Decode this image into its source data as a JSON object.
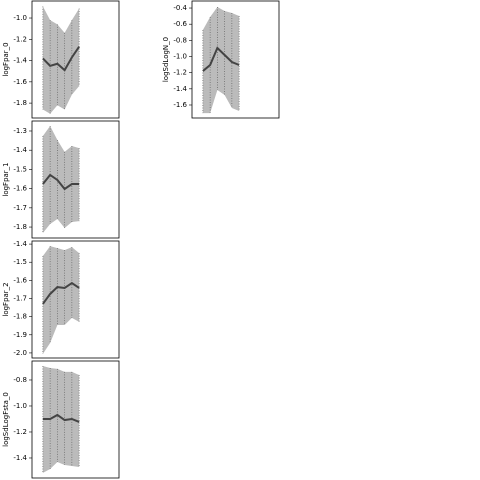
{
  "chart_data": [
    {
      "type": "line",
      "ylabel": "logFpar_0",
      "x": [
        0,
        1,
        2,
        3,
        4,
        5
      ],
      "xlim": [
        -1.5,
        10.5
      ],
      "values": [
        -1.38,
        -1.45,
        -1.43,
        -1.49,
        -1.37,
        -1.27
      ],
      "upper": [
        -0.89,
        -1.02,
        -1.06,
        -1.14,
        -1.02,
        -0.91
      ],
      "lower": [
        -1.86,
        -1.9,
        -1.82,
        -1.86,
        -1.72,
        -1.64
      ],
      "ylim": [
        -1.94,
        -0.84
      ],
      "yticks": [
        {
          "value": -1,
          "label": "-1.0"
        },
        -1.2,
        -1.4,
        -1.6,
        -1.8
      ],
      "color": "#444444",
      "band_color": "#bbbbbb"
    },
    {
      "type": "line",
      "ylabel": "logFpar_1",
      "x": [
        0,
        1,
        2,
        3,
        4,
        5
      ],
      "xlim": [
        -1.5,
        10.5
      ],
      "values": [
        -1.576,
        -1.529,
        -1.555,
        -1.602,
        -1.576,
        -1.576
      ],
      "upper": [
        -1.326,
        -1.274,
        -1.347,
        -1.409,
        -1.378,
        -1.389
      ],
      "lower": [
        -1.831,
        -1.784,
        -1.758,
        -1.805,
        -1.774,
        -1.769
      ],
      "ylim": [
        -1.857,
        -1.248
      ],
      "yticks": [
        -1.3,
        -1.4,
        -1.5,
        -1.6,
        -1.7,
        -1.8
      ],
      "color": "#444444",
      "band_color": "#bbbbbb"
    },
    {
      "type": "line",
      "ylabel": "logFpar_2",
      "x": [
        0,
        1,
        2,
        3,
        4,
        5
      ],
      "xlim": [
        -1.5,
        10.5
      ],
      "values": [
        -1.73,
        -1.675,
        -1.637,
        -1.642,
        -1.615,
        -1.642
      ],
      "upper": [
        -1.466,
        -1.411,
        -1.422,
        -1.433,
        -1.417,
        -1.45
      ],
      "lower": [
        -2.005,
        -1.945,
        -1.846,
        -1.846,
        -1.807,
        -1.829
      ],
      "ylim": [
        -2.028,
        -1.383
      ],
      "yticks": [
        -1.4,
        -1.5,
        -1.6,
        -1.7,
        -1.8,
        -1.9,
        {
          "value": -2,
          "label": "-2.0"
        }
      ],
      "color": "#444444",
      "band_color": "#bbbbbb"
    },
    {
      "type": "line",
      "ylabel": "logSdLogFsta_0",
      "x": [
        0,
        1,
        2,
        3,
        4,
        5
      ],
      "xlim": [
        -1.5,
        10.5
      ],
      "values": [
        -1.1,
        -1.1,
        -1.069,
        -1.108,
        -1.1,
        -1.123
      ],
      "upper": [
        -0.692,
        -0.708,
        -0.715,
        -0.738,
        -0.738,
        -0.762
      ],
      "lower": [
        -1.515,
        -1.485,
        -1.431,
        -1.454,
        -1.462,
        -1.469
      ],
      "ylim": [
        -1.554,
        -0.654
      ],
      "yticks": [
        -0.8,
        {
          "value": -1,
          "label": "-1.0"
        },
        -1.2,
        -1.4
      ],
      "color": "#444444",
      "band_color": "#bbbbbb"
    },
    {
      "type": "line",
      "ylabel": "logSdLogN_0",
      "x": [
        0,
        1,
        2,
        3,
        4,
        5
      ],
      "xlim": [
        -1.5,
        10.5
      ],
      "values": [
        -1.18,
        -1.105,
        -0.895,
        -0.981,
        -1.068,
        -1.105
      ],
      "upper": [
        -0.672,
        -0.511,
        -0.388,
        -0.436,
        -0.461,
        -0.499
      ],
      "lower": [
        -1.7,
        -1.7,
        -1.415,
        -1.477,
        -1.638,
        -1.675
      ],
      "ylim": [
        -1.761,
        -0.313
      ],
      "yticks": [
        -0.4,
        -0.6,
        -0.8,
        {
          "value": -1,
          "label": "-1.0"
        },
        -1.2,
        -1.4,
        -1.6
      ],
      "color": "#444444",
      "band_color": "#bbbbbb"
    }
  ]
}
